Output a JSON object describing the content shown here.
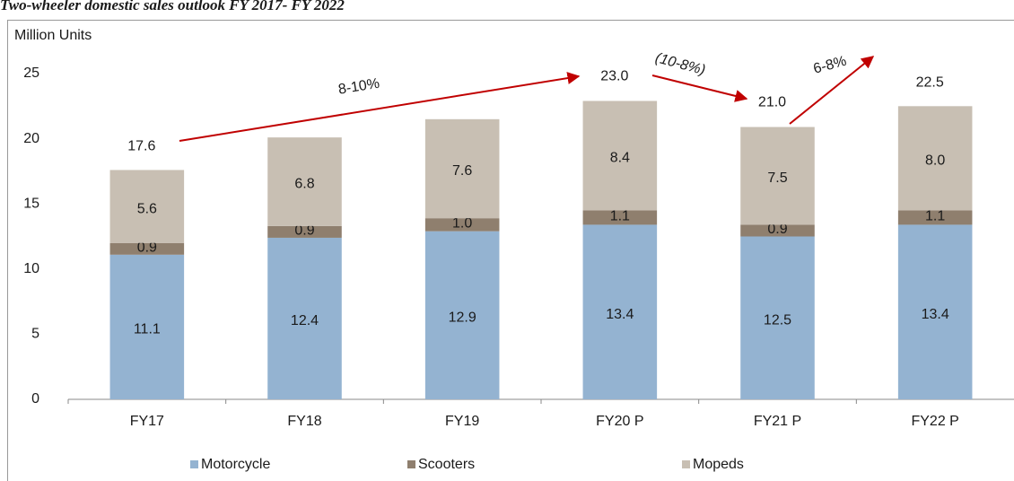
{
  "chart_data": {
    "type": "stacked_bar",
    "title": "Two-wheeler domestic sales outlook FY 2017- FY 2022",
    "y_label": "Million Units",
    "categories": [
      "FY17",
      "FY18",
      "FY19",
      "FY20 P",
      "FY21 P",
      "FY22 P"
    ],
    "series": [
      {
        "name": "Motorcycle",
        "color": "#94b3d1",
        "values": [
          11.1,
          12.4,
          12.9,
          13.4,
          12.5,
          13.4
        ],
        "value_labels": [
          "11.1",
          "12.4",
          "12.9",
          "13.4",
          "12.5",
          "13.4"
        ]
      },
      {
        "name": "Scooters",
        "color": "#8f7f6e",
        "values": [
          0.9,
          0.9,
          1.0,
          1.1,
          0.9,
          1.1
        ],
        "value_labels": [
          "0.9",
          "0.9",
          "1.0",
          "1.1",
          "0.9",
          "1.1"
        ]
      },
      {
        "name": "Mopeds",
        "color": "#c8bfb3",
        "values": [
          5.6,
          6.8,
          7.6,
          8.4,
          7.5,
          8.0
        ],
        "value_labels": [
          "5.6",
          "6.8",
          "7.6",
          "8.4",
          "7.5",
          "8.0"
        ]
      }
    ],
    "totals": [
      {
        "category": "FY17",
        "value": 17.6,
        "label": "17.6"
      },
      {
        "category": "FY20 P",
        "value": 23.0,
        "label": "23.0"
      },
      {
        "category": "FY21 P",
        "value": 21.0,
        "label": "21.0"
      },
      {
        "category": "FY22 P",
        "value": 22.5,
        "label": "22.5"
      }
    ],
    "annotations": [
      "8-10%",
      "(10-8%)",
      "6-8%"
    ],
    "ylim": [
      0,
      25
    ],
    "yticks": [
      0,
      5,
      10,
      15,
      20,
      25
    ],
    "grid": false,
    "legend": "bottom"
  }
}
